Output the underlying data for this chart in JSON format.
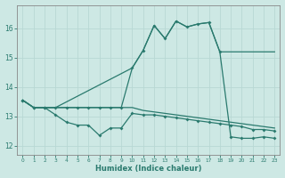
{
  "xlabel": "Humidex (Indice chaleur)",
  "xlim": [
    -0.5,
    23.5
  ],
  "ylim": [
    11.7,
    16.8
  ],
  "yticks": [
    12,
    13,
    14,
    15,
    16
  ],
  "xticks": [
    0,
    1,
    2,
    3,
    4,
    5,
    6,
    7,
    8,
    9,
    10,
    11,
    12,
    13,
    14,
    15,
    16,
    17,
    18,
    19,
    20,
    21,
    22,
    23
  ],
  "bg_color": "#cde8e4",
  "grid_color": "#b8d8d4",
  "line_color": "#2a7a6e",
  "line1_x": [
    0,
    1,
    2,
    3,
    10,
    11,
    12,
    13,
    14,
    15,
    16,
    17,
    18,
    19,
    20,
    21,
    22,
    23
  ],
  "line1_y": [
    13.55,
    13.3,
    13.3,
    13.3,
    14.65,
    15.25,
    16.1,
    15.65,
    16.25,
    16.05,
    16.15,
    16.2,
    15.2,
    15.2,
    15.2,
    15.2,
    15.2,
    15.2
  ],
  "line1_markers": [
    0,
    1,
    2,
    3,
    10,
    11,
    12,
    13,
    14,
    15,
    16,
    17,
    18
  ],
  "line2_x": [
    0,
    1,
    2,
    3,
    4,
    5,
    6,
    7,
    8,
    9,
    10,
    11,
    12,
    13,
    14,
    15,
    16,
    17,
    18,
    19,
    20,
    21,
    22,
    23
  ],
  "line2_y": [
    13.55,
    13.3,
    13.3,
    13.3,
    13.3,
    13.3,
    13.3,
    13.3,
    13.3,
    13.3,
    14.65,
    15.25,
    16.1,
    15.65,
    16.25,
    16.05,
    16.15,
    16.2,
    15.2,
    12.3,
    12.25,
    12.25,
    12.3,
    12.25
  ],
  "line3_x": [
    0,
    1,
    2,
    3,
    4,
    5,
    6,
    7,
    8,
    9,
    10,
    11,
    12,
    13,
    14,
    15,
    16,
    17,
    18,
    19,
    20,
    21,
    22,
    23
  ],
  "line3_y": [
    13.55,
    13.3,
    13.3,
    13.05,
    12.8,
    12.7,
    12.7,
    12.35,
    12.6,
    12.6,
    13.1,
    13.05,
    13.05,
    13.0,
    12.95,
    12.9,
    12.85,
    12.8,
    12.75,
    12.7,
    12.65,
    12.55,
    12.55,
    12.5
  ],
  "line4_x": [
    0,
    1,
    2,
    3,
    4,
    5,
    6,
    7,
    8,
    9,
    10,
    11,
    12,
    13,
    14,
    15,
    16,
    17,
    18,
    19,
    20,
    21,
    22,
    23
  ],
  "line4_y": [
    13.55,
    13.3,
    13.3,
    13.3,
    13.3,
    13.3,
    13.3,
    13.3,
    13.3,
    13.3,
    13.3,
    13.2,
    13.15,
    13.1,
    13.05,
    13.0,
    12.95,
    12.9,
    12.85,
    12.8,
    12.75,
    12.7,
    12.65,
    12.6
  ]
}
